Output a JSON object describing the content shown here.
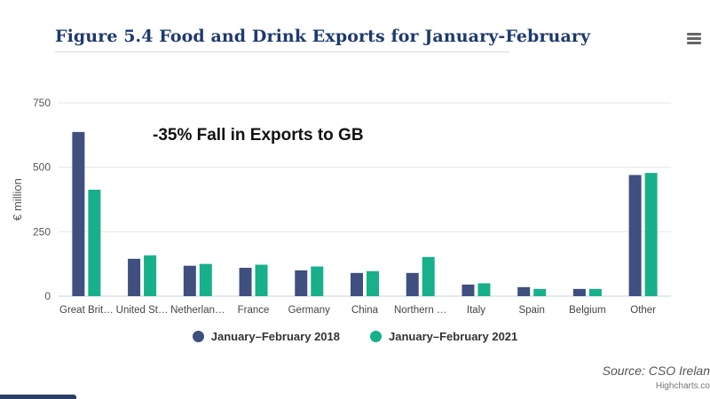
{
  "title": "Figure 5.4 Food and Drink Exports for January-February",
  "menu_icon": "hamburger-menu-icon",
  "annotation": "-35% Fall in Exports to GB",
  "source": "Source: CSO Irelan",
  "credits": "Highcharts.co",
  "colors": {
    "series_2018": "#3f4f7f",
    "series_2021": "#17b08a",
    "title": "#1e3a6e"
  },
  "chart_data": {
    "type": "bar",
    "title": "Figure 5.4 Food and Drink Exports for January-February",
    "ylabel": "€ million",
    "xlabel": "",
    "ylim": [
      0,
      750
    ],
    "yticks": [
      0,
      250,
      500,
      750
    ],
    "grid": true,
    "legend": "bottom-center",
    "categories": [
      "Great Brit…",
      "United St…",
      "Netherlan…",
      "France",
      "Germany",
      "China",
      "Northern …",
      "Italy",
      "Spain",
      "Belgium",
      "Other"
    ],
    "series": [
      {
        "name": "January–February 2018",
        "values": [
          637,
          145,
          118,
          110,
          100,
          90,
          90,
          45,
          35,
          28,
          470
        ]
      },
      {
        "name": "January–February 2021",
        "values": [
          413,
          158,
          125,
          122,
          115,
          97,
          152,
          50,
          28,
          28,
          478
        ]
      }
    ]
  }
}
